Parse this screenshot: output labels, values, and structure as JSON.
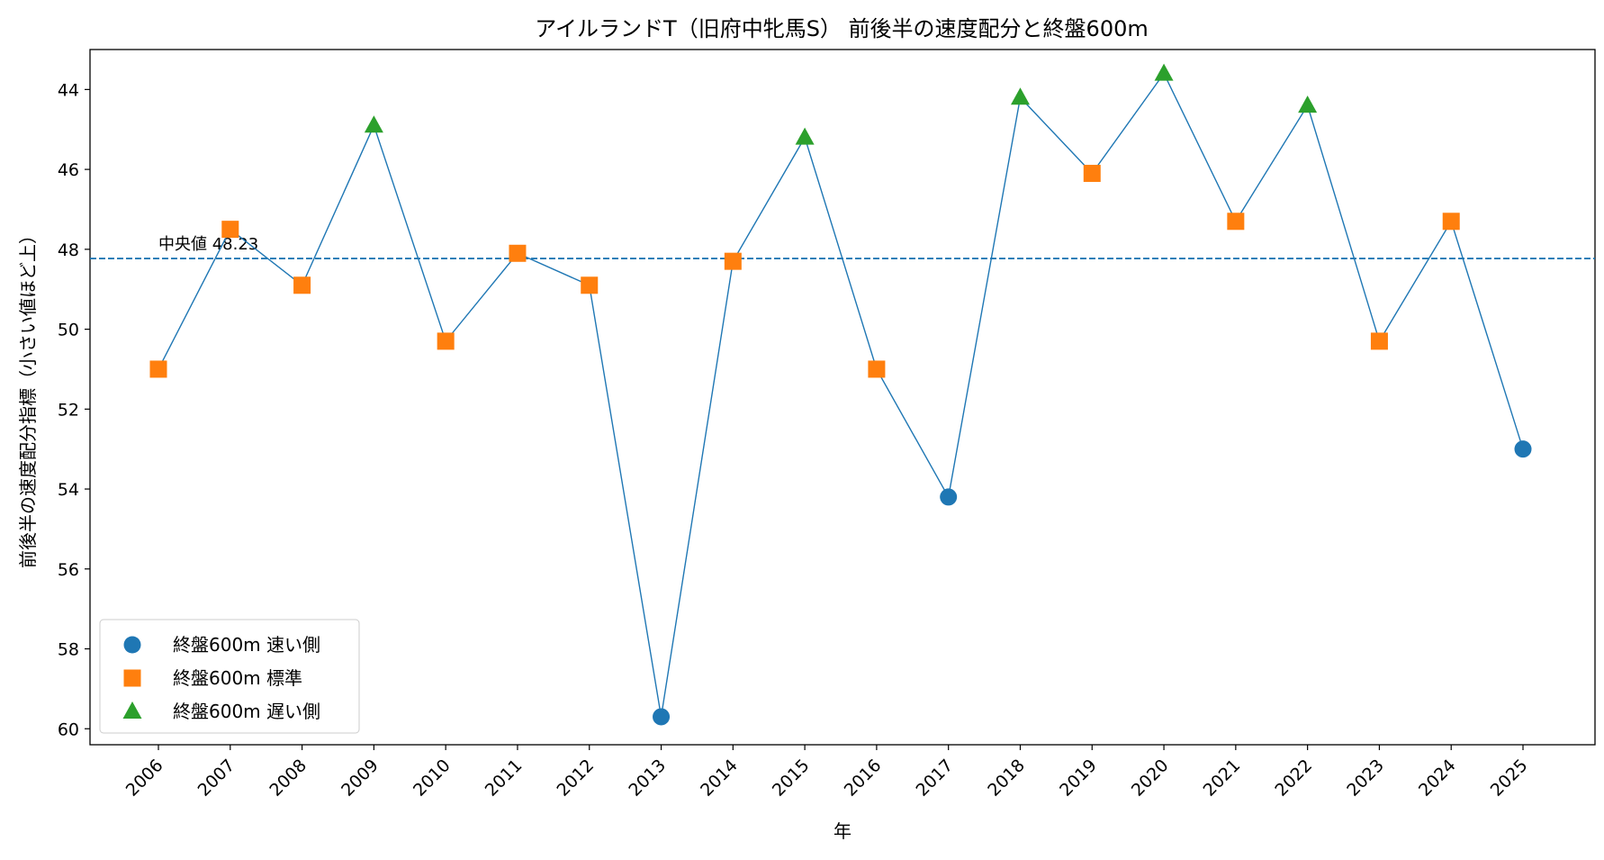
{
  "chart_data": {
    "type": "line",
    "title": "アイルランドT（旧府中牝馬S） 前後半の速度配分と終盤600m",
    "xlabel": "年",
    "ylabel": "前後半の速度配分指標（小さい値ほど上）",
    "y_inverted": true,
    "ylim": [
      43.0,
      60.4
    ],
    "yticks": [
      44,
      46,
      48,
      50,
      52,
      54,
      56,
      58,
      60
    ],
    "x": [
      "2006",
      "2007",
      "2008",
      "2009",
      "2010",
      "2011",
      "2012",
      "2013",
      "2014",
      "2015",
      "2016",
      "2017",
      "2018",
      "2019",
      "2020",
      "2021",
      "2022",
      "2023",
      "2024",
      "2025"
    ],
    "values": [
      51.0,
      47.5,
      48.9,
      44.9,
      50.3,
      48.1,
      48.9,
      59.7,
      48.3,
      45.2,
      51.0,
      54.2,
      44.2,
      46.1,
      43.6,
      47.3,
      44.4,
      50.3,
      47.3,
      53.0
    ],
    "categories_per_point": [
      "standard",
      "standard",
      "standard",
      "slow",
      "standard",
      "standard",
      "standard",
      "fast",
      "standard",
      "slow",
      "standard",
      "fast",
      "slow",
      "standard",
      "slow",
      "standard",
      "slow",
      "standard",
      "standard",
      "fast"
    ],
    "median": {
      "value": 48.23,
      "label": "中央値 48.23"
    },
    "grid": false,
    "legend_position": "lower-left",
    "line_color": "#1f77b4",
    "series": [
      {
        "key": "fast",
        "name": "終盤600m 速い側",
        "marker": "circle",
        "color": "#1f77b4"
      },
      {
        "key": "standard",
        "name": "終盤600m 標準",
        "marker": "square",
        "color": "#ff7f0e"
      },
      {
        "key": "slow",
        "name": "終盤600m 遅い側",
        "marker": "triangle",
        "color": "#2ca02c"
      }
    ]
  }
}
